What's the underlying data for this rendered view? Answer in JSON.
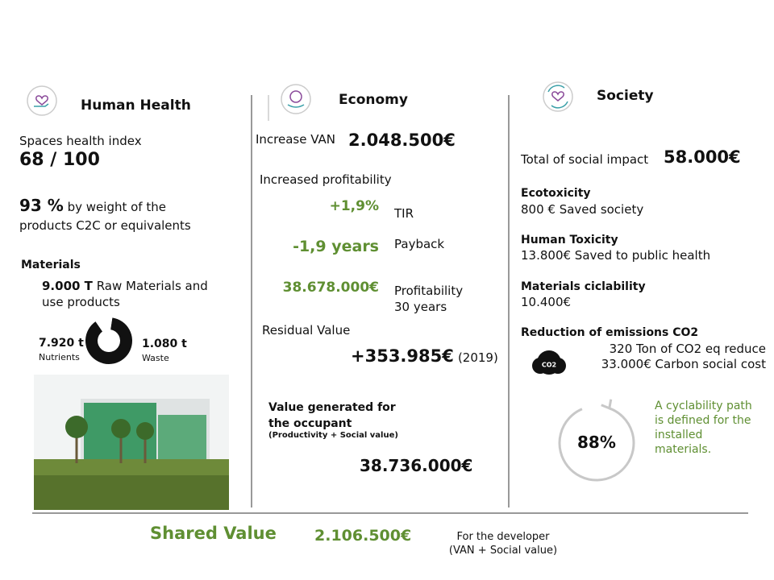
{
  "human_health": {
    "title": "Human Health",
    "index_label": "Spaces health index",
    "index_value": "68 / 100",
    "c2c_value": "93 %",
    "c2c_text": "by weight of the products C2C or equivalents",
    "materials_title": "Materials",
    "raw_value": "9.000 T",
    "raw_text": "Raw Materials and use products",
    "donut": [
      {
        "value": 7920,
        "label": "7.920 t",
        "name": "Nutrients"
      },
      {
        "value": 1080,
        "label": "1.080 t",
        "name": "Waste"
      }
    ]
  },
  "economy": {
    "title": "Economy",
    "van_label": "Increase VAN",
    "van_value": "2.048.500€",
    "profitability_title": "Increased profitability",
    "metrics": [
      {
        "value": "+1,9%",
        "label": "TIR"
      },
      {
        "value": "-1,9 years",
        "label": "Payback"
      },
      {
        "value": "38.678.000€",
        "label": "Profitability 30 years"
      }
    ],
    "residual_label": "Residual Value",
    "residual_value": "+353.985€",
    "residual_year": "(2019)",
    "occupant_title": "Value generated for the occupant",
    "occupant_note": "(Productivity + Social value)",
    "occupant_value": "38.736.000€"
  },
  "society": {
    "title": "Society",
    "total_label": "Total of social impact",
    "total_value": "58.000€",
    "items": [
      {
        "title": "Ecotoxicity",
        "text": "800 € Saved society"
      },
      {
        "title": "Human Toxicity",
        "text": "13.800€ Saved to public health"
      },
      {
        "title": "Materials ciclability",
        "text": "10.400€"
      }
    ],
    "co2_title": "Reduction of emissions CO2",
    "co2_icon": "CO2",
    "co2_lines": [
      "320 Ton of CO2 eq reduce",
      "33.000€ Carbon social cost"
    ],
    "cyclability": {
      "value": 88,
      "label": "88%",
      "text": "A cyclability path is defined for the installed materials."
    }
  },
  "footer": {
    "title": "Shared Value",
    "value": "2.106.500€",
    "note": "For the developer (VAN + Social value)"
  }
}
